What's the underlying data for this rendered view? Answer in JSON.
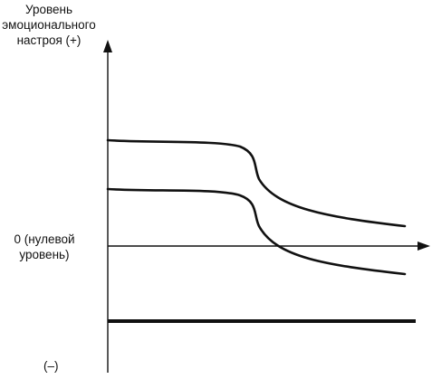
{
  "y_axis_label": {
    "line1": "Уровень",
    "line2": "эмоционального",
    "line3": "настроя (+)"
  },
  "zero_level_label": {
    "line1": "0 (нулевой",
    "line2": "уровень)"
  },
  "negative_label": "(–)",
  "colors": {
    "stroke": "#111111",
    "background": "#ffffff"
  }
}
